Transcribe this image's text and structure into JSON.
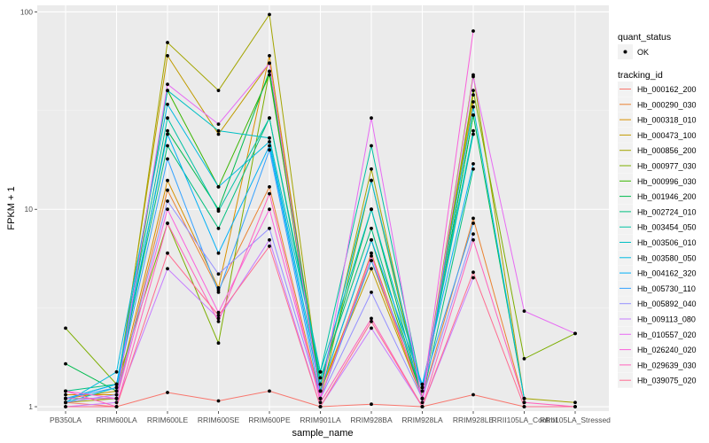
{
  "chart_data": {
    "type": "line",
    "title": "",
    "xlabel": "sample_name",
    "ylabel": "FPKM + 1",
    "y_scale": "log10",
    "ylim": [
      0.95,
      108
    ],
    "y_ticks": [
      1,
      10,
      100
    ],
    "y_tick_labels": [
      "1",
      "10",
      "100"
    ],
    "grid": true,
    "panel_background": "#ebebeb",
    "categories": [
      "PB350LA",
      "RRIM600LA",
      "RRIM600LE",
      "RRIM600SE",
      "RRIM600PE",
      "RRIM901LA",
      "RRIM928BA",
      "RRIM928LA",
      "RRIM928LE",
      "RRII105LA_Control",
      "RRII105LA_Stressed"
    ],
    "legend_placement": "right",
    "legends": [
      {
        "title": "quant_status",
        "entries": [
          {
            "label": "OK",
            "shape": "point"
          }
        ]
      },
      {
        "title": "tracking_id",
        "entries": [
          "Hb_000162_200",
          "Hb_000290_030",
          "Hb_000318_010",
          "Hb_000473_100",
          "Hb_000856_200",
          "Hb_000977_030",
          "Hb_000996_030",
          "Hb_001946_200",
          "Hb_002724_010",
          "Hb_003454_050",
          "Hb_003506_010",
          "Hb_003580_050",
          "Hb_004162_320",
          "Hb_005730_110",
          "Hb_005892_040",
          "Hb_009113_080",
          "Hb_010557_020",
          "Hb_026240_020",
          "Hb_029639_030",
          "Hb_039075_020"
        ]
      }
    ],
    "series": [
      {
        "name": "Hb_000162_200",
        "color": "#F8766D",
        "values": [
          1.05,
          1.0,
          1.18,
          1.07,
          1.2,
          1.0,
          1.03,
          1.0,
          1.15,
          1.0,
          1.0
        ]
      },
      {
        "name": "Hb_000290_030",
        "color": "#EA8331",
        "values": [
          1.1,
          1.1,
          12.5,
          3.9,
          13.0,
          1.1,
          6.0,
          1.1,
          9.0,
          1.05,
          null
        ]
      },
      {
        "name": "Hb_000318_010",
        "color": "#D89000",
        "values": [
          1.15,
          1.15,
          14.0,
          4.0,
          60.0,
          1.2,
          5.5,
          1.1,
          35.0,
          null,
          null
        ]
      },
      {
        "name": "Hb_000473_100",
        "color": "#C09B00",
        "values": [
          1.1,
          1.2,
          60.0,
          24.0,
          55.0,
          1.2,
          5.0,
          1.1,
          38.0,
          null,
          null
        ]
      },
      {
        "name": "Hb_000856_200",
        "color": "#A3A500",
        "values": [
          1.05,
          1.1,
          70.0,
          40.0,
          97.0,
          1.2,
          16.0,
          1.1,
          48.0,
          1.1,
          1.05
        ]
      },
      {
        "name": "Hb_000977_030",
        "color": "#7CAE00",
        "values": [
          2.5,
          1.3,
          8.5,
          2.1,
          50.0,
          1.1,
          14.0,
          1.1,
          40.0,
          1.75,
          2.35
        ]
      },
      {
        "name": "Hb_000996_030",
        "color": "#39B600",
        "values": [
          1.1,
          1.1,
          40.0,
          13.0,
          48.0,
          1.2,
          7.0,
          1.1,
          30.0,
          null,
          null
        ]
      },
      {
        "name": "Hb_001946_200",
        "color": "#00BB4E",
        "values": [
          1.65,
          1.2,
          25.0,
          10.0,
          50.0,
          1.3,
          10.0,
          1.1,
          30.0,
          1.1,
          null
        ]
      },
      {
        "name": "Hb_002724_010",
        "color": "#00BF7D",
        "values": [
          1.2,
          1.3,
          21.0,
          8.0,
          29.0,
          1.4,
          8.0,
          1.1,
          16.0,
          null,
          null
        ]
      },
      {
        "name": "Hb_003454_050",
        "color": "#00C1A3",
        "values": [
          1.1,
          1.3,
          29.0,
          9.8,
          29.0,
          1.5,
          21.0,
          1.2,
          24.0,
          null,
          null
        ]
      },
      {
        "name": "Hb_003506_010",
        "color": "#00BFC4",
        "values": [
          1.05,
          1.25,
          40.0,
          25.0,
          23.0,
          1.5,
          10.0,
          1.25,
          25.0,
          null,
          null
        ]
      },
      {
        "name": "Hb_003580_050",
        "color": "#00BAE0",
        "values": [
          1.05,
          1.5,
          34.0,
          13.0,
          22.0,
          1.3,
          14.0,
          1.2,
          33.0,
          1.1,
          null
        ]
      },
      {
        "name": "Hb_004162_320",
        "color": "#00B0F6",
        "values": [
          1.1,
          1.3,
          24.0,
          6.0,
          21.0,
          1.2,
          7.0,
          1.3,
          17.0,
          null,
          null
        ]
      },
      {
        "name": "Hb_005730_110",
        "color": "#35A2FF",
        "values": [
          1.1,
          1.25,
          18.0,
          3.8,
          20.0,
          1.1,
          5.5,
          1.25,
          8.5,
          null,
          null
        ]
      },
      {
        "name": "Hb_005892_040",
        "color": "#9590FF",
        "values": [
          1.05,
          1.15,
          11.0,
          4.7,
          8.0,
          1.1,
          3.8,
          1.1,
          7.5,
          null,
          null
        ]
      },
      {
        "name": "Hb_009113_080",
        "color": "#C77CFF",
        "values": [
          1.0,
          1.05,
          5.0,
          2.8,
          7.0,
          1.0,
          2.5,
          1.0,
          4.5,
          null,
          null
        ]
      },
      {
        "name": "Hb_010557_020",
        "color": "#E76BF3",
        "values": [
          1.1,
          1.1,
          43.0,
          27.0,
          55.0,
          1.1,
          29.0,
          1.05,
          47.0,
          3.05,
          2.35
        ]
      },
      {
        "name": "Hb_026240_020",
        "color": "#FA62DB",
        "values": [
          1.2,
          1.1,
          10.0,
          3.0,
          10.0,
          1.1,
          5.8,
          1.1,
          80.0,
          null,
          null
        ]
      },
      {
        "name": "Hb_029639_030",
        "color": "#FF62BC",
        "values": [
          1.2,
          1.0,
          8.5,
          2.7,
          12.0,
          1.05,
          2.8,
          1.0,
          7.0,
          1.05,
          1.0
        ]
      },
      {
        "name": "Hb_039075_020",
        "color": "#FF6C91",
        "values": [
          1.0,
          1.0,
          6.0,
          2.9,
          6.5,
          1.0,
          2.7,
          1.0,
          4.8,
          1.0,
          1.0
        ]
      }
    ]
  }
}
